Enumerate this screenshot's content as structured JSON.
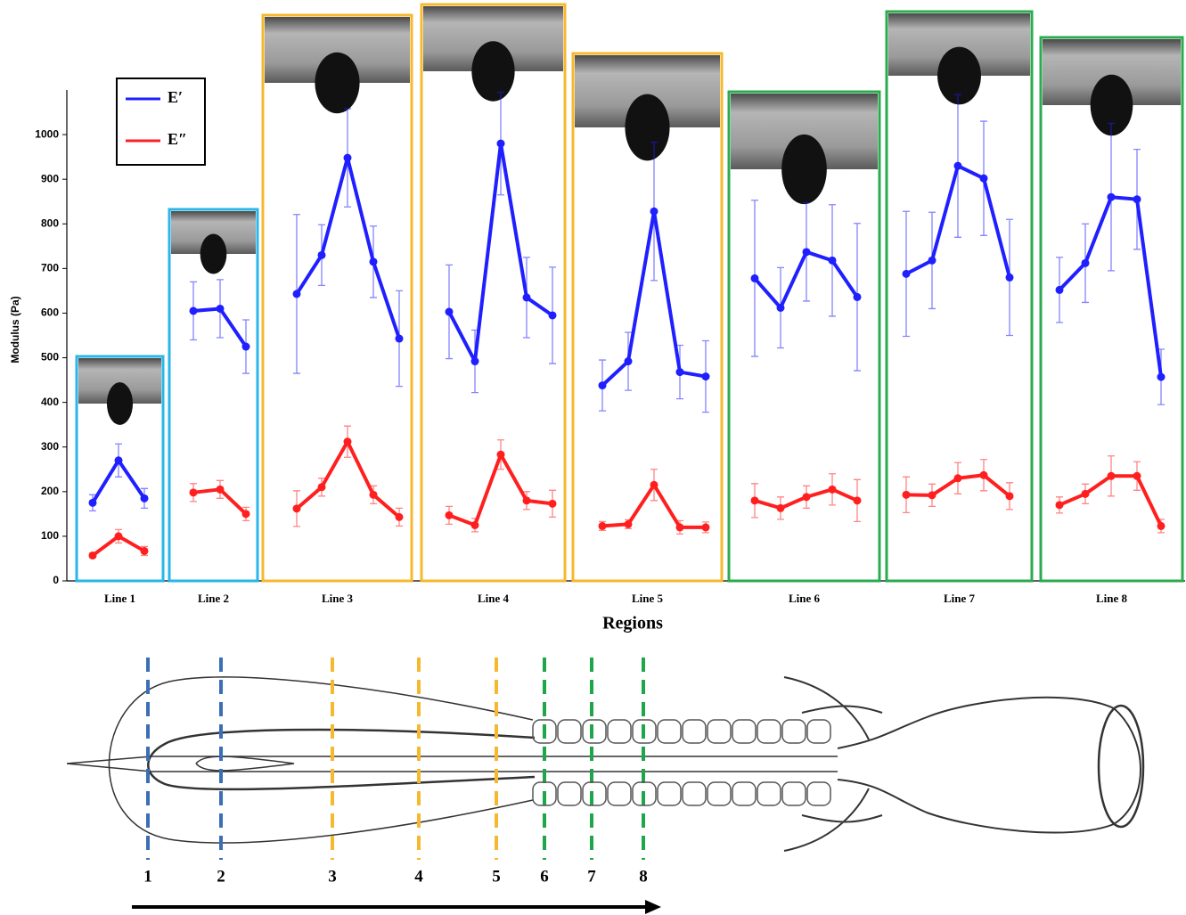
{
  "chart_data": {
    "type": "line",
    "ylabel": "Modulus  (Pa)",
    "xlabel": "Regions",
    "ylim": [
      0,
      1100
    ],
    "yticks": [
      0,
      100,
      200,
      300,
      400,
      500,
      600,
      700,
      800,
      900,
      1000
    ],
    "legend": "upper left",
    "groups": [
      {
        "label": "Line 1",
        "color": "#29b6e8"
      },
      {
        "label": "Line 2",
        "color": "#29b6e8"
      },
      {
        "label": "Line 3",
        "color": "#f5b82e"
      },
      {
        "label": "Line 4",
        "color": "#f5b82e"
      },
      {
        "label": "Line 5",
        "color": "#f5b82e"
      },
      {
        "label": "Line 6",
        "color": "#2bab4f"
      },
      {
        "label": "Line 7",
        "color": "#2bab4f"
      },
      {
        "label": "Line 8",
        "color": "#2bab4f"
      }
    ],
    "series": [
      {
        "name": "E′",
        "color": "#1f1fff",
        "values": [
          [
            175,
            270,
            185
          ],
          [
            605,
            610,
            525
          ],
          [
            643,
            730,
            948,
            715,
            543
          ],
          [
            603,
            492,
            980,
            635,
            595
          ],
          [
            438,
            492,
            828,
            468,
            458
          ],
          [
            678,
            612,
            737,
            718,
            636
          ],
          [
            688,
            718,
            930,
            902,
            680
          ],
          [
            652,
            712,
            860,
            855,
            457
          ]
        ],
        "errors": [
          [
            18,
            37,
            22
          ],
          [
            65,
            65,
            60
          ],
          [
            178,
            68,
            110,
            80,
            107
          ],
          [
            105,
            70,
            115,
            90,
            108
          ],
          [
            57,
            65,
            155,
            60,
            80
          ],
          [
            175,
            90,
            110,
            125,
            165
          ],
          [
            140,
            108,
            160,
            128,
            130
          ],
          [
            73,
            88,
            165,
            112,
            62
          ]
        ]
      },
      {
        "name": "E″",
        "color": "#ff1f1f",
        "values": [
          [
            57,
            100,
            67
          ],
          [
            198,
            205,
            150
          ],
          [
            162,
            210,
            312,
            193,
            143
          ],
          [
            147,
            125,
            283,
            180,
            173
          ],
          [
            123,
            127,
            215,
            120,
            120
          ],
          [
            180,
            163,
            188,
            205,
            180
          ],
          [
            193,
            192,
            230,
            237,
            190
          ],
          [
            170,
            195,
            235,
            235,
            123
          ]
        ],
        "errors": [
          [
            5,
            15,
            10
          ],
          [
            20,
            20,
            15
          ],
          [
            40,
            20,
            35,
            20,
            20
          ],
          [
            20,
            15,
            33,
            20,
            30
          ],
          [
            10,
            10,
            35,
            15,
            12
          ],
          [
            38,
            25,
            25,
            35,
            47
          ],
          [
            40,
            25,
            35,
            35,
            30
          ],
          [
            18,
            22,
            45,
            32,
            15
          ]
        ]
      }
    ]
  },
  "diagram": {
    "labels": [
      "1",
      "2",
      "3",
      "4",
      "5",
      "6",
      "7",
      "8"
    ],
    "colors": [
      "#3a6fb5",
      "#3a6fb5",
      "#f5b82e",
      "#f5b82e",
      "#f5b82e",
      "#1fa64a",
      "#1fa64a",
      "#1fa64a"
    ]
  }
}
